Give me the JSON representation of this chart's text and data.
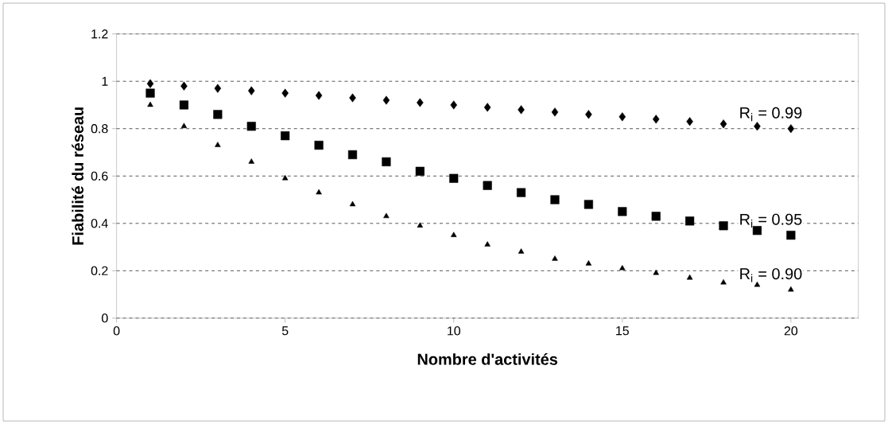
{
  "chart_data": {
    "type": "scatter",
    "xlabel": "Nombre d'activités",
    "ylabel": "Fiabilité du réseau",
    "x": [
      1,
      2,
      3,
      4,
      5,
      6,
      7,
      8,
      9,
      10,
      11,
      12,
      13,
      14,
      15,
      16,
      17,
      18,
      19,
      20
    ],
    "series": [
      {
        "name": "R$_{i}$ = 0.99",
        "color": "#000000",
        "marker": "diamond",
        "values": [
          0.99,
          0.98,
          0.97,
          0.96,
          0.95,
          0.94,
          0.93,
          0.92,
          0.91,
          0.9,
          0.89,
          0.88,
          0.87,
          0.86,
          0.85,
          0.84,
          0.83,
          0.82,
          0.81,
          0.8
        ]
      },
      {
        "name": "R$_{i}$ = 0.95",
        "color": "#000000",
        "marker": "square",
        "values": [
          0.95,
          0.9,
          0.86,
          0.81,
          0.77,
          0.73,
          0.69,
          0.66,
          0.62,
          0.59,
          0.56,
          0.53,
          0.5,
          0.48,
          0.45,
          0.43,
          0.41,
          0.39,
          0.37,
          0.35
        ]
      },
      {
        "name": "R$_{i}$ = 0.90",
        "color": "#000000",
        "marker": "triangle",
        "values": [
          0.9,
          0.81,
          0.73,
          0.66,
          0.59,
          0.53,
          0.48,
          0.43,
          0.39,
          0.35,
          0.31,
          0.28,
          0.25,
          0.23,
          0.21,
          0.19,
          0.17,
          0.15,
          0.14,
          0.12
        ]
      }
    ],
    "xlim": [
      0,
      22
    ],
    "xticks": [
      0,
      5,
      10,
      15,
      20
    ],
    "ylim": [
      0,
      1.2
    ],
    "yticks": [
      0,
      0.2,
      0.4,
      0.6,
      0.8,
      1,
      1.2
    ],
    "grid": "y",
    "legend": false
  }
}
